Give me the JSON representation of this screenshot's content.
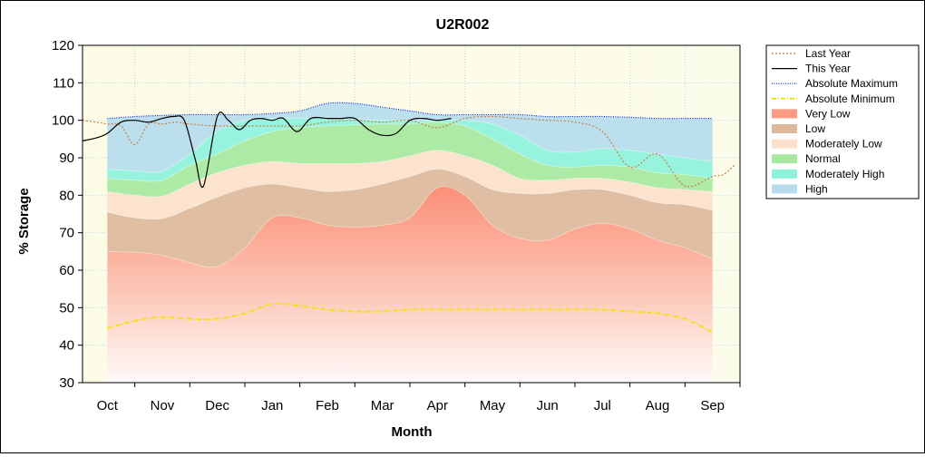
{
  "chart_data": {
    "type": "area",
    "title": "U2R002",
    "xlabel": "Month",
    "ylabel": "% Storage",
    "ylim": [
      30,
      120
    ],
    "yticks": [
      30,
      40,
      50,
      60,
      70,
      80,
      90,
      100,
      110,
      120
    ],
    "categories": [
      "Oct",
      "Nov",
      "Dec",
      "Jan",
      "Feb",
      "Mar",
      "Apr",
      "May",
      "Jun",
      "Jul",
      "Aug",
      "Sep"
    ],
    "grid": true,
    "legend_position": "right",
    "x_domain": [
      -0.45,
      11.5
    ],
    "band_x": [
      0,
      0.5,
      1,
      1.5,
      2,
      2.5,
      3,
      3.5,
      4,
      4.5,
      5,
      5.5,
      6,
      6.5,
      7,
      7.5,
      8,
      8.5,
      9,
      9.5,
      10,
      10.5,
      11
    ],
    "bands": [
      {
        "name": "Very Low",
        "color": "#fb9a83",
        "upper": [
          65,
          64.8,
          64,
          62,
          61,
          66,
          74,
          74,
          72,
          71.5,
          72,
          74,
          82,
          80,
          72,
          68.5,
          68,
          71,
          72.5,
          71,
          68,
          66,
          63
        ]
      },
      {
        "name": "Low",
        "color": "#dcb89c",
        "upper": [
          75.5,
          74,
          73.8,
          76.5,
          79.5,
          82,
          83,
          82,
          81,
          81.5,
          83,
          85,
          87,
          85,
          81.5,
          80.5,
          80.5,
          81.5,
          81.5,
          80,
          78,
          77.5,
          76
        ]
      },
      {
        "name": "Moderately Low",
        "color": "#fbe1cb",
        "upper": [
          81,
          80,
          79.8,
          83,
          86,
          88,
          89,
          88.5,
          88.5,
          88.5,
          89,
          90.5,
          92,
          90.5,
          88,
          84.5,
          84,
          84.5,
          84.5,
          83.5,
          82,
          81.5,
          81
        ]
      },
      {
        "name": "Normal",
        "color": "#a6e8a0",
        "upper": [
          84.5,
          84,
          84,
          88,
          91,
          94.5,
          97,
          98,
          98.5,
          98.8,
          99,
          99,
          99.5,
          98.5,
          95,
          91,
          88,
          87.5,
          88,
          87.5,
          86,
          85.5,
          84.5
        ]
      },
      {
        "name": "Moderately High",
        "color": "#8df2dc",
        "upper": [
          87,
          86.5,
          86.5,
          91,
          97,
          100,
          100.5,
          100.5,
          100.5,
          100.3,
          100,
          100,
          100,
          100,
          99,
          96,
          92,
          91.5,
          92.5,
          92,
          91,
          90,
          89
        ]
      },
      {
        "name": "High",
        "color": "#b6dcee",
        "upper": [
          100.5,
          101,
          101.3,
          101.5,
          101.5,
          101.5,
          101.8,
          102.5,
          104.5,
          104.5,
          103.5,
          102.5,
          101.5,
          101.5,
          101.5,
          101.5,
          101,
          101,
          101,
          100.8,
          100.5,
          100.5,
          100.5
        ]
      }
    ],
    "series": [
      {
        "name": "Last Year",
        "color": "#c87838",
        "style": "dashed",
        "x": [
          -0.45,
          -0.2,
          0,
          0.25,
          0.5,
          0.75,
          1,
          1.25,
          1.5,
          2,
          2.5,
          3,
          3.5,
          4,
          4.5,
          5,
          5.5,
          6,
          6.5,
          7,
          7.5,
          8,
          8.5,
          9,
          9.5,
          10,
          10.5,
          11,
          11.2,
          11.4
        ],
        "y": [
          100,
          99.5,
          99,
          98.5,
          93.5,
          99,
          99,
          99.5,
          99,
          98.5,
          98.5,
          98.5,
          98.5,
          99.5,
          100,
          99.5,
          100,
          98,
          100.5,
          101,
          100.5,
          100,
          99.5,
          97,
          87.5,
          91,
          82.5,
          85,
          85.5,
          88
        ]
      },
      {
        "name": "This Year",
        "color": "#000000",
        "style": "solid",
        "x": [
          -0.45,
          -0.2,
          0,
          0.25,
          0.5,
          0.75,
          1,
          1.2,
          1.4,
          1.6,
          1.75,
          2,
          2.2,
          2.4,
          2.6,
          2.8,
          3,
          3.2,
          3.45,
          3.7,
          4,
          4.25,
          4.5,
          4.75,
          5,
          5.25,
          5.5,
          5.75,
          6,
          6.25
        ],
        "y": [
          94.5,
          95.3,
          96.5,
          99.5,
          100,
          99.5,
          100.5,
          101,
          100,
          89.5,
          82.5,
          101,
          100,
          97.5,
          100,
          100.5,
          100,
          100.5,
          97,
          100.5,
          100.5,
          100.5,
          100.5,
          97.5,
          96,
          96.5,
          100,
          100.5,
          100,
          100.5
        ]
      },
      {
        "name": "Absolute Maximum",
        "color": "#0018d6",
        "style": "dotted",
        "x": [
          0,
          0.5,
          1,
          1.5,
          2,
          2.5,
          3,
          3.5,
          4,
          4.5,
          5,
          5.5,
          6,
          6.5,
          7,
          7.5,
          8,
          8.5,
          9,
          9.5,
          10,
          10.5,
          11
        ],
        "y": [
          100.5,
          101,
          101.3,
          101.5,
          101.5,
          101.5,
          101.8,
          102.5,
          104.5,
          104.5,
          103.5,
          102.5,
          101.5,
          101.5,
          101.5,
          101.5,
          101,
          101,
          101,
          100.8,
          100.5,
          100.5,
          100.5
        ]
      },
      {
        "name": "Absolute Minimum",
        "color": "#f2e20a",
        "style": "dashdot",
        "x": [
          0,
          0.5,
          1,
          1.5,
          2,
          2.5,
          3,
          3.5,
          4,
          4.5,
          5,
          5.5,
          6,
          6.5,
          7,
          7.5,
          8,
          8.5,
          9,
          9.5,
          10,
          10.5,
          11
        ],
        "y": [
          44.5,
          46.5,
          47.5,
          47,
          47,
          48.5,
          51,
          50.5,
          49.5,
          49,
          49,
          49.5,
          49.5,
          49.5,
          49.5,
          49.5,
          49.5,
          49.5,
          49.5,
          49,
          48.5,
          47,
          43.5
        ]
      }
    ],
    "legend": [
      {
        "label": "Last Year",
        "kind": "line",
        "color": "#c87838",
        "style": "dashed"
      },
      {
        "label": "This Year",
        "kind": "line",
        "color": "#000000",
        "style": "solid"
      },
      {
        "label": "Absolute Maximum",
        "kind": "line",
        "color": "#0018d6",
        "style": "dotted"
      },
      {
        "label": "Absolute Minimum",
        "kind": "line",
        "color": "#f2e20a",
        "style": "dashdot"
      },
      {
        "label": "Very Low",
        "kind": "area",
        "color": "#fb9a83"
      },
      {
        "label": "Low",
        "kind": "area",
        "color": "#dcb89c"
      },
      {
        "label": "Moderately Low",
        "kind": "area",
        "color": "#fbe1cb"
      },
      {
        "label": "Normal",
        "kind": "area",
        "color": "#a6e8a0"
      },
      {
        "label": "Moderately High",
        "kind": "area",
        "color": "#8df2dc"
      },
      {
        "label": "High",
        "kind": "area",
        "color": "#b6dcee"
      }
    ]
  }
}
